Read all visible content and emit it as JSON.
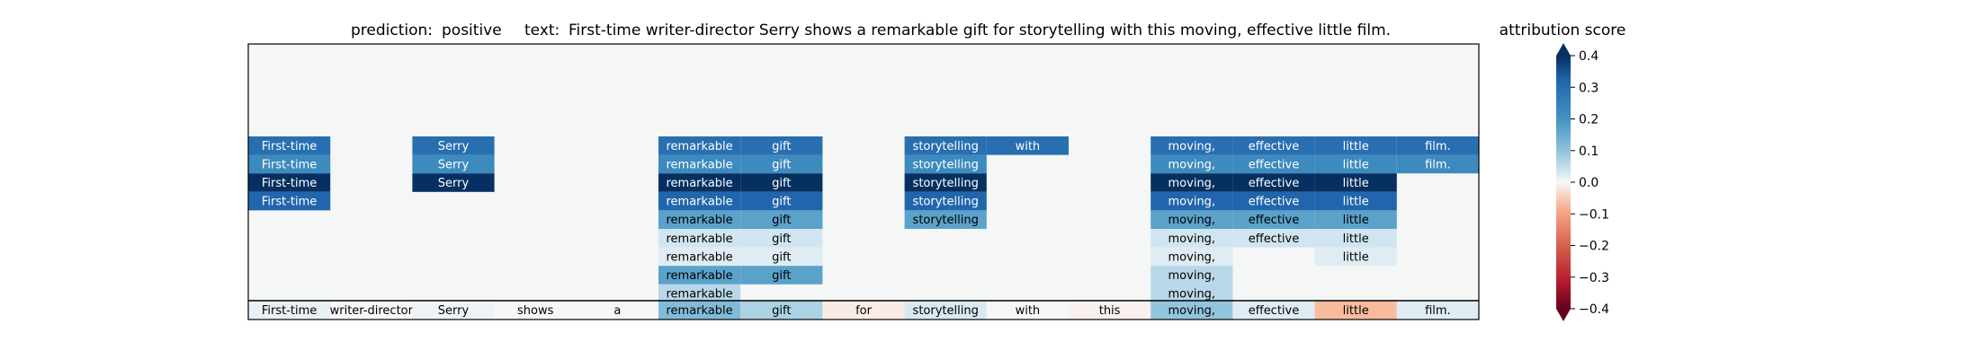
{
  "title": {
    "prediction_label": "prediction:",
    "prediction_value": "positive",
    "text_label": "text:",
    "text_value": "First-time writer-director Serry shows a remarkable gift for storytelling with this moving, effective little film."
  },
  "colorbar": {
    "title": "attribution score",
    "tick_labels": [
      "0.4",
      "0.3",
      "0.2",
      "0.1",
      "0.0",
      "−0.1",
      "−0.2",
      "−0.3",
      "−0.4"
    ]
  },
  "chart_data": {
    "type": "heatmap",
    "title": "prediction:  positive     text:  First-time writer-director Serry shows a remarkable gift for storytelling with this moving, effective little film.",
    "tokens": [
      "First-time",
      "writer-director",
      "Serry",
      "shows",
      "a",
      "remarkable",
      "gift",
      "for",
      "storytelling",
      "with",
      "this",
      "moving,",
      "effective",
      "little",
      "film."
    ],
    "colorbar": {
      "label": "attribution score",
      "range": [
        -0.4,
        0.4
      ],
      "ticks": [
        0.4,
        0.3,
        0.2,
        0.1,
        0.0,
        -0.1,
        -0.2,
        -0.3,
        -0.4
      ],
      "colormap": "RdBu",
      "extend": "both"
    },
    "token_attribution_row": [
      0.02,
      0.0,
      0.01,
      0.0,
      0.0,
      0.12,
      0.08,
      -0.02,
      0.04,
      0.0,
      -0.01,
      0.1,
      0.03,
      -0.08,
      0.03
    ],
    "stacked_rows": [
      {
        "tokens": [
          0,
          2,
          5,
          6,
          8,
          9,
          11,
          12,
          13,
          14
        ],
        "values": [
          0.28,
          0.28,
          0.28,
          0.28,
          0.28,
          0.28,
          0.28,
          0.28,
          0.28,
          0.28
        ]
      },
      {
        "tokens": [
          0,
          2,
          5,
          6,
          8,
          11,
          12,
          13,
          14
        ],
        "values": [
          0.22,
          0.22,
          0.22,
          0.22,
          0.22,
          0.22,
          0.22,
          0.22,
          0.22
        ]
      },
      {
        "tokens": [
          0,
          2,
          5,
          6,
          8,
          11,
          12,
          13
        ],
        "values": [
          0.42,
          0.42,
          0.42,
          0.42,
          0.42,
          0.42,
          0.42,
          0.42
        ]
      },
      {
        "tokens": [
          0,
          5,
          6,
          8,
          11,
          12,
          13
        ],
        "values": [
          0.3,
          0.3,
          0.3,
          0.3,
          0.3,
          0.3,
          0.3
        ]
      },
      {
        "tokens": [
          5,
          6,
          8,
          11,
          12,
          13
        ],
        "values": [
          0.17,
          0.17,
          0.17,
          0.17,
          0.17,
          0.17
        ]
      },
      {
        "tokens": [
          5,
          6,
          11,
          12,
          13
        ],
        "values": [
          0.05,
          0.05,
          0.05,
          0.05,
          0.05
        ]
      },
      {
        "tokens": [
          5,
          6,
          11,
          13
        ],
        "values": [
          0.03,
          0.03,
          0.03,
          0.03
        ]
      },
      {
        "tokens": [
          5,
          6,
          11
        ],
        "values": [
          0.17,
          0.17,
          0.07
        ]
      },
      {
        "tokens": [
          5,
          11
        ],
        "values": [
          0.07,
          0.07
        ]
      }
    ],
    "grid": false
  }
}
